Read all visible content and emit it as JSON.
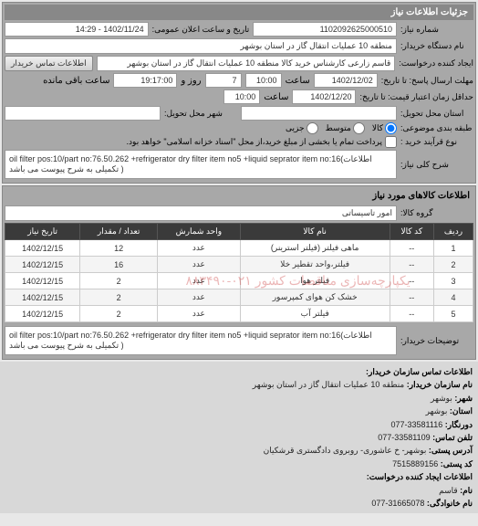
{
  "header": {
    "title": "جزئیات اطلاعات نیاز"
  },
  "main": {
    "req_no_label": "شماره نیاز:",
    "req_no": "1102092625000510",
    "announce_label": "تاریخ و ساعت اعلان عمومی:",
    "announce": "1402/11/24 - 14:29",
    "buyer_label": "نام دستگاه خریدار:",
    "buyer": "منطقه 10 عملیات انتقال گاز در استان بوشهر",
    "requester_label": "ایجاد کننده درخواست:",
    "requester": "قاسم زارعی کارشناس خرید کالا منطقه 10 عملیات انتقال گاز در استان بوشهر",
    "contact_btn": "اطلاعات تماس خریدار",
    "deadline_send_label": "مهلت ارسال پاسخ: تا تاریخ:",
    "deadline_send_date": "1402/12/02",
    "time_label": "ساعت",
    "deadline_send_time": "10:00",
    "remaining_days": "7",
    "remaining_days_label": "روز و",
    "remaining_time": "19:17:00",
    "remaining_label": "ساعت باقی مانده",
    "validity_label": "حداقل زمان اعتبار قیمت: تا تاریخ:",
    "validity_date": "1402/12/20",
    "validity_time": "10:00",
    "delivery_label": "استان محل تحویل:",
    "delivery": "",
    "city_delivery_label": "شهر محل تحویل:",
    "city_delivery": "",
    "category_label": "طبقه بندی موضوعی:",
    "cat_all": "کالا",
    "cat_medium": "متوسط",
    "cat_small": "جزیی",
    "contract_label": "نوع قرآیند خرید :",
    "contract_note": "پرداخت تمام یا بخشی از مبلغ خرید،از محل \"اسناد خزانه اسلامی\" خواهد بود.",
    "desc_label": "شرح کلی نیاز:",
    "desc_text": "oil filter pos:10/part no:76.50.262 +refrigerator dry filter item no5 +liquid seprator item no:16(اطلاعات تکمیلی به شرح پیوست می باشد )"
  },
  "items_section": {
    "title": "اطلاعات کالاهای مورد نیاز",
    "group_label": "گروه کالا:",
    "group": "امور تاسیساتی",
    "columns": [
      "ردیف",
      "کد کالا",
      "نام کالا",
      "واحد شمارش",
      "تعداد / مقدار",
      "تاریخ نیاز"
    ],
    "rows": [
      [
        "1",
        "--",
        "ماهی فیلتر (فیلتر استرینر)",
        "عدد",
        "12",
        "1402/12/15"
      ],
      [
        "2",
        "--",
        "فیلتر،واحد تقطیر خلا",
        "عدد",
        "16",
        "1402/12/15"
      ],
      [
        "3",
        "--",
        "فیلتر هوا",
        "عدد",
        "2",
        "1402/12/15"
      ],
      [
        "4",
        "--",
        "خشک کن هوای کمپرسور",
        "عدد",
        "2",
        "1402/12/15"
      ],
      [
        "5",
        "--",
        "فیلتر آب",
        "عدد",
        "2",
        "1402/12/15"
      ]
    ],
    "watermark": "یکپارچه‌سازی مناقصات کشور ۰۲۱-۸۸۳۴۹۰",
    "notes_label": "توضیحات خریدار:",
    "notes_text": "oil filter pos:10/part no:76.50.262 +refrigerator dry filter item no5 +liquid seprator item no:16(اطلاعات تکمیلی به شرح پیوست می باشد )"
  },
  "contact": {
    "title": "اطلاعات تماس سازمان خریدار:",
    "org_label": "نام سازمان خریدار:",
    "org": "منطقه 10 عملیات انتقال گاز در استان بوشهر",
    "province_label": "شهر:",
    "province": "بوشهر",
    "city_label": "استان:",
    "city": "بوشهر",
    "phone_label": "دورنگار:",
    "phone": "33581116-077",
    "fax_label": "تلفن تماس:",
    "fax": "33581109-077",
    "address_label": "آدرس پستی:",
    "address": "بوشهر- خ عاشوری- روبروی دادگستری قرشکیان",
    "postal_label": "کد پستی:",
    "postal": "7515889156",
    "requester_title": "اطلاعات ایجاد کننده درخواست:",
    "family_label": "نام:",
    "family": "قاسم",
    "name_label": "نام خانوادگی:",
    "name": "31665078-077"
  }
}
